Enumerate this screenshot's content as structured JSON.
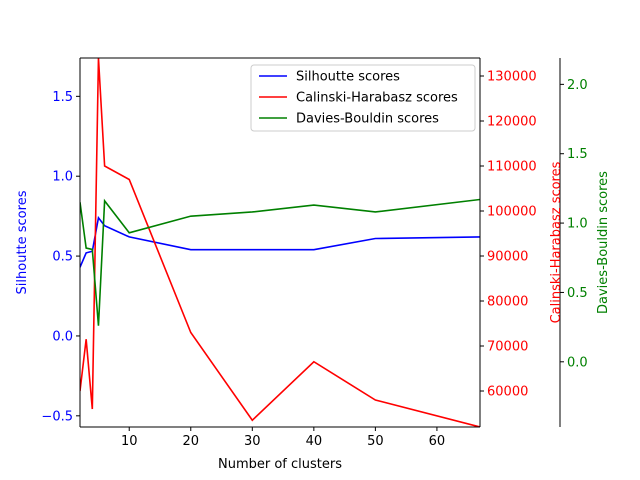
{
  "chart_data": {
    "type": "line",
    "xlabel": "Number of clusters",
    "xlim": [
      2,
      67
    ],
    "x_ticks": [
      10,
      20,
      30,
      40,
      50,
      60
    ],
    "axes": {
      "left": {
        "label": "Silhoutte scores",
        "color": "#0000ff",
        "ylim": [
          -0.57,
          1.74
        ],
        "ticks": [
          -0.5,
          0.0,
          0.5,
          1.0,
          1.5
        ],
        "tick_labels": [
          "−0.5",
          "0.0",
          "0.5",
          "1.0",
          "1.5"
        ]
      },
      "right1": {
        "label": "Calinski-Harabasz scores",
        "color": "#ff0000",
        "ylim": [
          52000,
          134000
        ],
        "ticks": [
          60000,
          70000,
          80000,
          90000,
          100000,
          110000,
          120000,
          130000
        ],
        "tick_labels": [
          "60000",
          "70000",
          "80000",
          "90000",
          "100000",
          "110000",
          "120000",
          "130000"
        ]
      },
      "right2": {
        "label": "Davies-Bouldin scores",
        "color": "#008000",
        "ylim": [
          -0.47,
          2.19
        ],
        "ticks": [
          0.0,
          0.5,
          1.0,
          1.5,
          2.0
        ],
        "tick_labels": [
          "0.0",
          "0.5",
          "1.0",
          "1.5",
          "2.0"
        ]
      }
    },
    "series": [
      {
        "name": "Silhoutte scores",
        "axis": "left",
        "color": "#0000ff",
        "x": [
          2,
          3,
          4,
          5,
          6,
          10,
          20,
          30,
          40,
          50,
          67
        ],
        "y": [
          0.43,
          0.52,
          0.53,
          0.74,
          0.69,
          0.62,
          0.54,
          0.54,
          0.54,
          0.61,
          0.62
        ]
      },
      {
        "name": "Calinski-Harabasz scores",
        "axis": "right1",
        "color": "#ff0000",
        "x": [
          2,
          3,
          4,
          5,
          6,
          10,
          20,
          30,
          40,
          50,
          67
        ],
        "y": [
          60000,
          71500,
          56000,
          134000,
          110000,
          107000,
          73000,
          53500,
          66500,
          58000,
          52000
        ]
      },
      {
        "name": "Davies-Bouldin scores",
        "axis": "right2",
        "color": "#008000",
        "x": [
          2,
          3,
          4,
          5,
          6,
          10,
          20,
          30,
          40,
          50,
          67
        ],
        "y": [
          1.15,
          0.82,
          0.81,
          0.26,
          1.16,
          0.93,
          1.05,
          1.08,
          1.13,
          1.08,
          1.17
        ]
      }
    ],
    "legend": {
      "placement": "top-right",
      "entries": [
        "Silhoutte scores",
        "Calinski-Harabasz scores",
        "Davies-Bouldin scores"
      ]
    }
  }
}
